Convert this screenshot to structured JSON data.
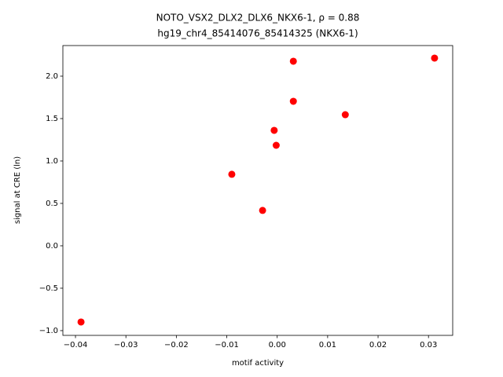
{
  "chart_data": {
    "type": "scatter",
    "title": "NOTO_VSX2_DLX2_DLX6_NKX6-1, ρ = 0.88",
    "subtitle": "hg19_chr4_85414076_85414325 (NKX6-1)",
    "x_label": "motif activity",
    "y_label": "signal at CRE (ln)",
    "color": "#ff0000",
    "x": [
      -0.0389,
      -0.009,
      -0.0029,
      -0.0006,
      -0.0002,
      0.0032,
      0.0032,
      0.0135,
      0.0312
    ],
    "values": [
      -0.898,
      0.843,
      0.417,
      1.361,
      1.185,
      2.176,
      1.704,
      1.546,
      2.213
    ],
    "xlim": [
      -0.0425,
      0.0348
    ],
    "ylim": [
      -1.056,
      2.361
    ],
    "xticks": [
      {
        "value": -0.04,
        "label": "−0.04"
      },
      {
        "value": -0.03,
        "label": "−0.03"
      },
      {
        "value": -0.02,
        "label": "−0.02"
      },
      {
        "value": -0.01,
        "label": "−0.01"
      },
      {
        "value": 0,
        "label": "0.00"
      },
      {
        "value": 0.01,
        "label": "0.01"
      },
      {
        "value": 0.02,
        "label": "0.02"
      },
      {
        "value": 0.03,
        "label": "0.03"
      }
    ],
    "yticks": [
      {
        "value": -1,
        "label": "−1.0"
      },
      {
        "value": -0.5,
        "label": "−0.5"
      },
      {
        "value": 0,
        "label": "0.0"
      },
      {
        "value": 0.5,
        "label": "0.5"
      },
      {
        "value": 1,
        "label": "1.0"
      },
      {
        "value": 1.5,
        "label": "1.5"
      },
      {
        "value": 2,
        "label": "2.0"
      }
    ]
  }
}
